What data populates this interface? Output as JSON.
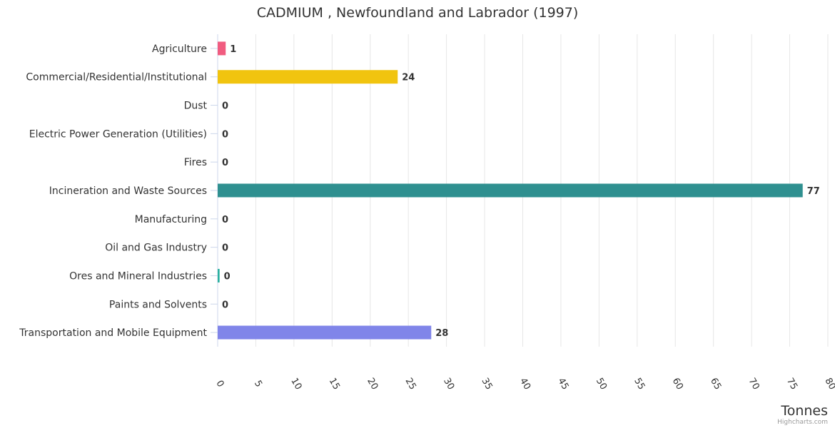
{
  "chart_data": {
    "type": "bar",
    "orientation": "horizontal",
    "title": "CADMIUM , Newfoundland and Labrador (1997)",
    "categories": [
      "Agriculture",
      "Commercial/Residential/Institutional",
      "Dust",
      "Electric Power Generation (Utilities)",
      "Fires",
      "Incineration and Waste Sources",
      "Manufacturing",
      "Oil and Gas Industry",
      "Ores and Mineral Industries",
      "Paints and Solvents",
      "Transportation and Mobile Equipment"
    ],
    "values": [
      1.05,
      23.6,
      0,
      0,
      0,
      76.7,
      0,
      0,
      0.25,
      0,
      28.0
    ],
    "data_labels": [
      "1",
      "24",
      "0",
      "0",
      "0",
      "77",
      "0",
      "0",
      "0",
      "0",
      "28"
    ],
    "colors": [
      "#f15c80",
      "#f1c40f",
      "#7cb5ec",
      "#90ed7d",
      "#8085e9",
      "#2f9090",
      "#e4d354",
      "#91e8e1",
      "#2ab0a0",
      "#f7a35c",
      "#8085e9"
    ],
    "xlabel": "Tonnes",
    "xlim": [
      0,
      80
    ],
    "ticks": [
      0,
      5,
      10,
      15,
      20,
      25,
      30,
      35,
      40,
      45,
      50,
      55,
      60,
      65,
      70,
      75,
      80
    ],
    "grid": true,
    "legend": "none"
  },
  "credits": "Highcharts.com"
}
